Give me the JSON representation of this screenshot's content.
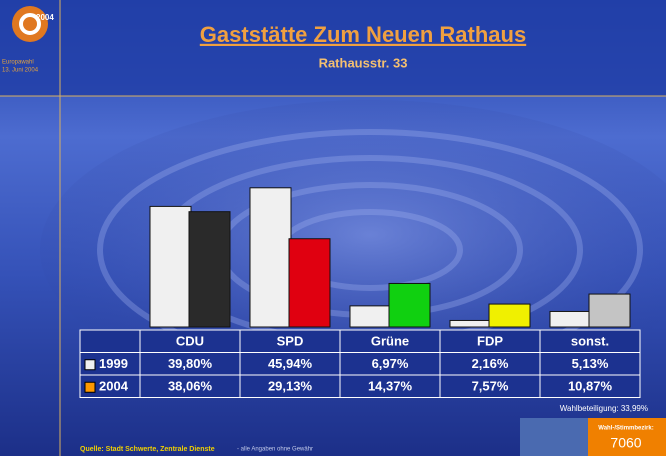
{
  "chart_data": {
    "type": "bar",
    "title": "Gaststätte Zum Neuen Rathaus",
    "subtitle": "Rathausstr. 33",
    "categories": [
      "CDU",
      "SPD",
      "Grüne",
      "FDP",
      "sonst."
    ],
    "series": [
      {
        "name": "1999",
        "color": "#f0f0f0",
        "colors": [
          "#f0f0f0",
          "#f0f0f0",
          "#f0f0f0",
          "#f0f0f0",
          "#f0f0f0"
        ],
        "values": [
          39.8,
          45.94,
          6.97,
          2.16,
          5.13
        ],
        "value_labels": [
          "39,80%",
          "45,94%",
          "6,97%",
          "2,16%",
          "5,13%"
        ]
      },
      {
        "name": "2004",
        "color": "#ff9900",
        "colors": [
          "#2a2a2a",
          "#e00010",
          "#10d010",
          "#f0f000",
          "#c4c4c4"
        ],
        "values": [
          38.06,
          29.13,
          14.37,
          7.57,
          10.87
        ],
        "value_labels": [
          "38,06%",
          "29,13%",
          "14,37%",
          "7,57%",
          "10,87%"
        ]
      }
    ],
    "annotations": {
      "turnout": "Wahlbeteiligung: 33,99%",
      "source": "Quelle: Stadt Schwerte, Zentrale Dienste",
      "disclaimer": "- alle Angaben ohne Gewähr",
      "district_label": "Wahl-/Stimmbezirk:",
      "district": "7060"
    }
  },
  "logo": {
    "year": "2004",
    "line1": "Europawahl",
    "line2": "13. Juni 2004"
  }
}
